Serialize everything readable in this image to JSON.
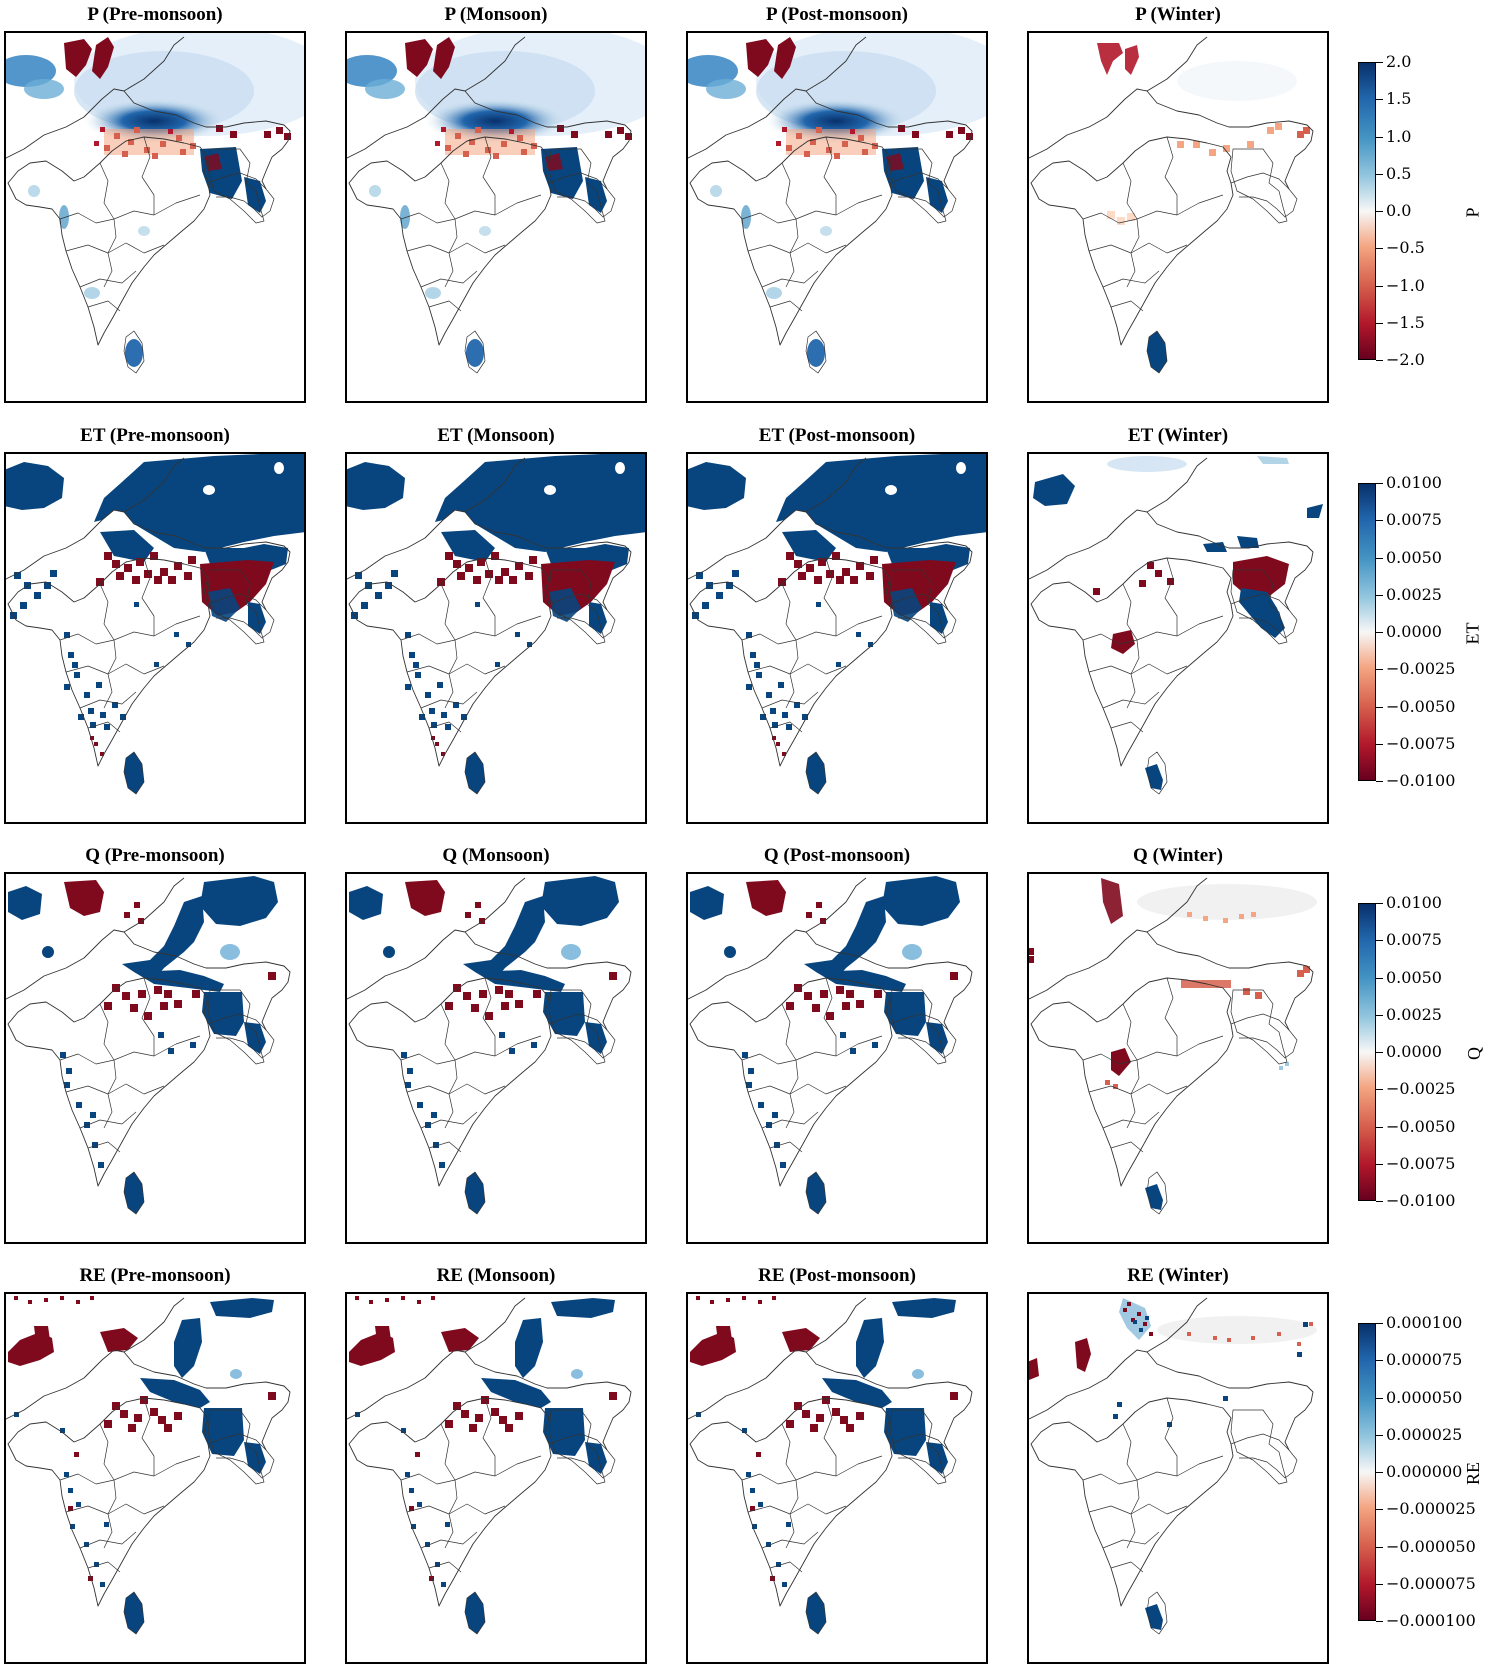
{
  "seasons": [
    "Pre-monsoon",
    "Monsoon",
    "Post-monsoon",
    "Winter"
  ],
  "rows": [
    {
      "variable": "P",
      "titles": [
        "P (Pre-monsoon)",
        "P (Monsoon)",
        "P (Post-monsoon)",
        "P (Winter)"
      ],
      "colorbar": {
        "label": "P",
        "ticks": [
          "2.0",
          "1.5",
          "1.0",
          "0.5",
          "0.0",
          "−0.5",
          "−1.0",
          "−1.5",
          "−2.0"
        ]
      }
    },
    {
      "variable": "ET",
      "titles": [
        "ET (Pre-monsoon)",
        "ET (Monsoon)",
        "ET (Post-monsoon)",
        "ET (Winter)"
      ],
      "colorbar": {
        "label": "ET",
        "ticks": [
          "0.0100",
          "0.0075",
          "0.0050",
          "0.0025",
          "0.0000",
          "−0.0025",
          "−0.0050",
          "−0.0075",
          "−0.0100"
        ]
      }
    },
    {
      "variable": "Q",
      "titles": [
        "Q (Pre-monsoon)",
        "Q (Monsoon)",
        "Q (Post-monsoon)",
        "Q (Winter)"
      ],
      "colorbar": {
        "label": "Q",
        "ticks": [
          "0.0100",
          "0.0075",
          "0.0050",
          "0.0025",
          "0.0000",
          "−0.0025",
          "−0.0050",
          "−0.0075",
          "−0.0100"
        ]
      }
    },
    {
      "variable": "RE",
      "titles": [
        "RE (Pre-monsoon)",
        "RE (Monsoon)",
        "RE (Post-monsoon)",
        "RE (Winter)"
      ],
      "colorbar": {
        "label": "RE",
        "ticks": [
          "0.000100",
          "0.000075",
          "0.000050",
          "0.000025",
          "0.000000",
          "−0.000025",
          "−0.000050",
          "−0.000075",
          "−0.000100"
        ]
      }
    }
  ],
  "colormap": {
    "name": "RdBu",
    "high": "#08306b",
    "mid": "#f7f7f7",
    "low": "#67001f"
  },
  "colors": {
    "strong_blue": "#08457e",
    "strong_red": "#7f0a1e",
    "boundary": "#333333"
  }
}
